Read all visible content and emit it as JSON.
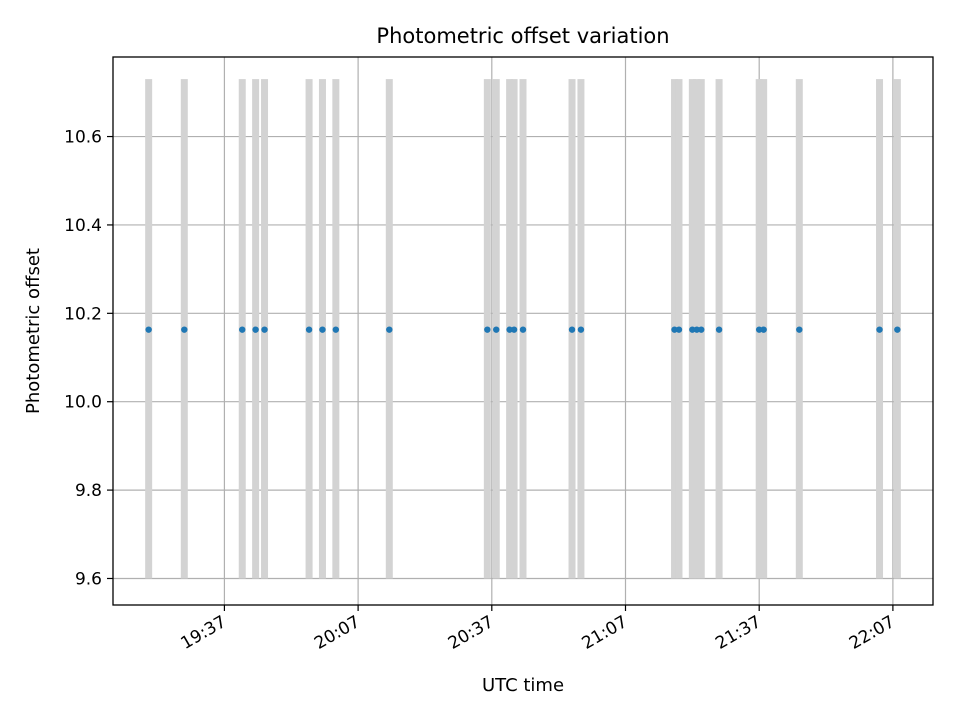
{
  "chart_data": {
    "type": "scatter",
    "title": "Photometric offset variation",
    "xlabel": "UTC time",
    "ylabel": "Photometric offset",
    "x_axis": {
      "type": "time",
      "range": [
        "19:12",
        "22:16"
      ],
      "ticks": [
        "19:37",
        "20:07",
        "20:37",
        "21:07",
        "21:37",
        "22:07"
      ]
    },
    "y_axis": {
      "range": [
        9.54,
        10.78
      ],
      "ticks": [
        "9.6",
        "9.8",
        "10.0",
        "10.2",
        "10.4",
        "10.6"
      ]
    },
    "grid": true,
    "points": {
      "color": "#1f77b4",
      "y": 10.163,
      "x": [
        "19:20",
        "19:28",
        "19:41",
        "19:44",
        "19:46",
        "19:56",
        "19:59",
        "20:02",
        "20:14",
        "20:36",
        "20:38",
        "20:41",
        "20:42",
        "20:44",
        "20:55",
        "20:57",
        "21:18",
        "21:19",
        "21:22",
        "21:23",
        "21:24",
        "21:28",
        "21:37",
        "21:38",
        "21:46",
        "22:04",
        "22:08"
      ]
    },
    "bands": {
      "color": "#d3d3d3",
      "y_range": [
        9.6,
        10.73
      ],
      "x": [
        "19:20",
        "19:28",
        "19:41",
        "19:44",
        "19:46",
        "19:56",
        "19:59",
        "20:02",
        "20:14",
        "20:36",
        "20:38",
        "20:41",
        "20:42",
        "20:44",
        "20:55",
        "20:57",
        "21:18",
        "21:19",
        "21:22",
        "21:23",
        "21:24",
        "21:28",
        "21:37",
        "21:38",
        "21:46",
        "22:04",
        "22:08"
      ]
    }
  }
}
